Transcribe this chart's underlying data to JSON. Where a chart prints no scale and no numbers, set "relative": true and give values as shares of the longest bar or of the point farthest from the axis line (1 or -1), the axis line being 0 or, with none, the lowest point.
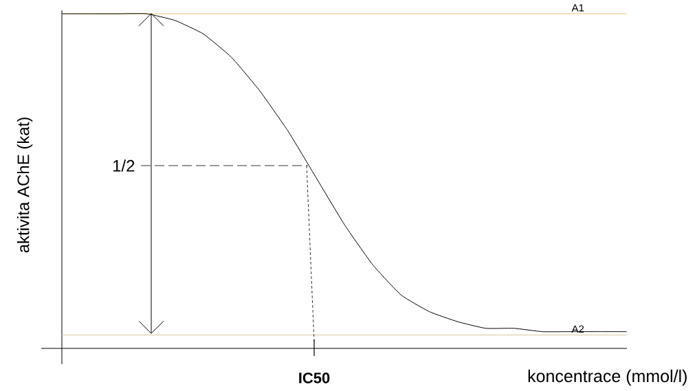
{
  "chart_data": {
    "type": "line",
    "relative": true,
    "xlabel": "koncentrace (mmol/l)",
    "ylabel": "aktivita AChE (kat)",
    "categories": [
      null,
      null,
      null,
      null,
      null,
      null,
      null,
      null,
      null,
      null,
      null,
      null,
      null,
      null,
      null,
      null,
      null,
      null,
      null,
      null,
      null
    ],
    "values": [
      1,
      1,
      1,
      1,
      0.98,
      0.94,
      0.87,
      0.77,
      0.65,
      0.51,
      0.37,
      0.25,
      0.16,
      0.11,
      0.08,
      0.06,
      0.06,
      0.05,
      0.05,
      0.05,
      0.05
    ],
    "color": "#000000",
    "ref_lines": [
      {
        "axis": "y",
        "value": 1,
        "label": "A1",
        "color": "#f0c878"
      },
      {
        "axis": "y",
        "value": 0.04,
        "label": "A2",
        "color": "#d8c8a0"
      }
    ],
    "annotations": [
      "1/2",
      "IC50"
    ]
  }
}
